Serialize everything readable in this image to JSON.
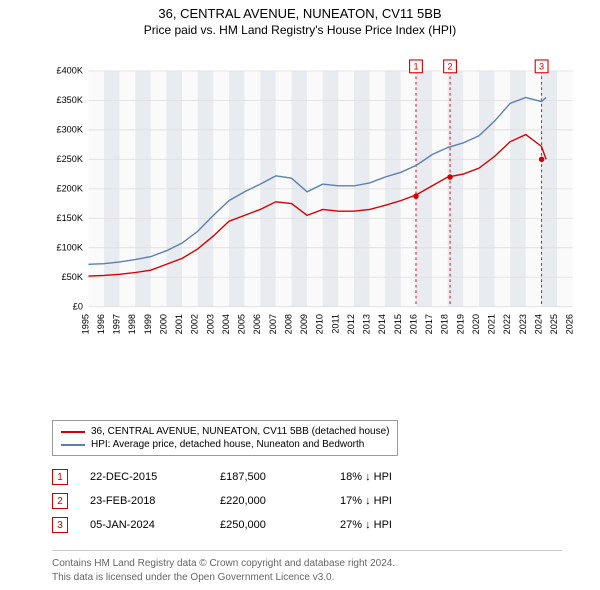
{
  "title": "36, CENTRAL AVENUE, NUNEATON, CV11 5BB",
  "subtitle": "Price paid vs. HM Land Registry's House Price Index (HPI)",
  "chart": {
    "type": "line",
    "background_color": "#fafafa",
    "band_color": "#e8ebf0",
    "grid_color": "#e0e0e0",
    "ylim": [
      0,
      400000
    ],
    "ytick_step": 50000,
    "yticks": [
      "£0",
      "£50K",
      "£100K",
      "£150K",
      "£200K",
      "£250K",
      "£300K",
      "£350K",
      "£400K"
    ],
    "x_years": [
      1995,
      1996,
      1997,
      1998,
      1999,
      2000,
      2001,
      2002,
      2003,
      2004,
      2005,
      2006,
      2007,
      2008,
      2009,
      2010,
      2011,
      2012,
      2013,
      2014,
      2015,
      2016,
      2017,
      2018,
      2019,
      2020,
      2021,
      2022,
      2023,
      2024,
      2025,
      2026
    ],
    "series_red": {
      "label": "36, CENTRAL AVENUE, NUNEATON, CV11 5BB (detached house)",
      "color": "#d40000",
      "points": [
        [
          1995,
          52000
        ],
        [
          1996,
          53000
        ],
        [
          1997,
          55000
        ],
        [
          1998,
          58000
        ],
        [
          1999,
          62000
        ],
        [
          2000,
          72000
        ],
        [
          2001,
          82000
        ],
        [
          2002,
          98000
        ],
        [
          2003,
          120000
        ],
        [
          2004,
          145000
        ],
        [
          2005,
          155000
        ],
        [
          2006,
          165000
        ],
        [
          2007,
          178000
        ],
        [
          2008,
          175000
        ],
        [
          2009,
          155000
        ],
        [
          2010,
          165000
        ],
        [
          2011,
          162000
        ],
        [
          2012,
          162000
        ],
        [
          2013,
          165000
        ],
        [
          2014,
          172000
        ],
        [
          2015,
          180000
        ],
        [
          2016,
          190000
        ],
        [
          2017,
          205000
        ],
        [
          2018,
          220000
        ],
        [
          2019,
          225000
        ],
        [
          2020,
          235000
        ],
        [
          2021,
          255000
        ],
        [
          2022,
          280000
        ],
        [
          2023,
          292000
        ],
        [
          2024,
          272000
        ],
        [
          2024.3,
          250000
        ]
      ]
    },
    "series_blue": {
      "label": "HPI: Average price, detached house, Nuneaton and Bedworth",
      "color": "#5b7fb5",
      "points": [
        [
          1995,
          72000
        ],
        [
          1996,
          73000
        ],
        [
          1997,
          76000
        ],
        [
          1998,
          80000
        ],
        [
          1999,
          85000
        ],
        [
          2000,
          95000
        ],
        [
          2001,
          108000
        ],
        [
          2002,
          128000
        ],
        [
          2003,
          155000
        ],
        [
          2004,
          180000
        ],
        [
          2005,
          195000
        ],
        [
          2006,
          208000
        ],
        [
          2007,
          222000
        ],
        [
          2008,
          218000
        ],
        [
          2009,
          195000
        ],
        [
          2010,
          208000
        ],
        [
          2011,
          205000
        ],
        [
          2012,
          205000
        ],
        [
          2013,
          210000
        ],
        [
          2014,
          220000
        ],
        [
          2015,
          228000
        ],
        [
          2016,
          240000
        ],
        [
          2017,
          258000
        ],
        [
          2018,
          270000
        ],
        [
          2019,
          278000
        ],
        [
          2020,
          290000
        ],
        [
          2021,
          315000
        ],
        [
          2022,
          345000
        ],
        [
          2023,
          355000
        ],
        [
          2024,
          348000
        ],
        [
          2024.3,
          355000
        ]
      ]
    },
    "markers": [
      {
        "num": "1",
        "year": 2015.97,
        "color": "#d40000"
      },
      {
        "num": "2",
        "year": 2018.15,
        "color": "#d40000"
      },
      {
        "num": "3",
        "year": 2024.01,
        "color": "#d40000"
      }
    ],
    "sale_dots": [
      {
        "year": 2015.97,
        "value": 187500,
        "color": "#d40000"
      },
      {
        "year": 2018.15,
        "value": 220000,
        "color": "#d40000"
      },
      {
        "year": 2024.01,
        "value": 250000,
        "color": "#d40000"
      }
    ]
  },
  "legend": {
    "red": "36, CENTRAL AVENUE, NUNEATON, CV11 5BB (detached house)",
    "blue": "HPI: Average price, detached house, Nuneaton and Bedworth"
  },
  "sales": [
    {
      "num": "1",
      "date": "22-DEC-2015",
      "price": "£187,500",
      "diff": "18% ↓ HPI",
      "color": "#d40000"
    },
    {
      "num": "2",
      "date": "23-FEB-2018",
      "price": "£220,000",
      "diff": "17% ↓ HPI",
      "color": "#d40000"
    },
    {
      "num": "3",
      "date": "05-JAN-2024",
      "price": "£250,000",
      "diff": "27% ↓ HPI",
      "color": "#d40000"
    }
  ],
  "footer": {
    "line1": "Contains HM Land Registry data © Crown copyright and database right 2024.",
    "line2": "This data is licensed under the Open Government Licence v3.0."
  }
}
